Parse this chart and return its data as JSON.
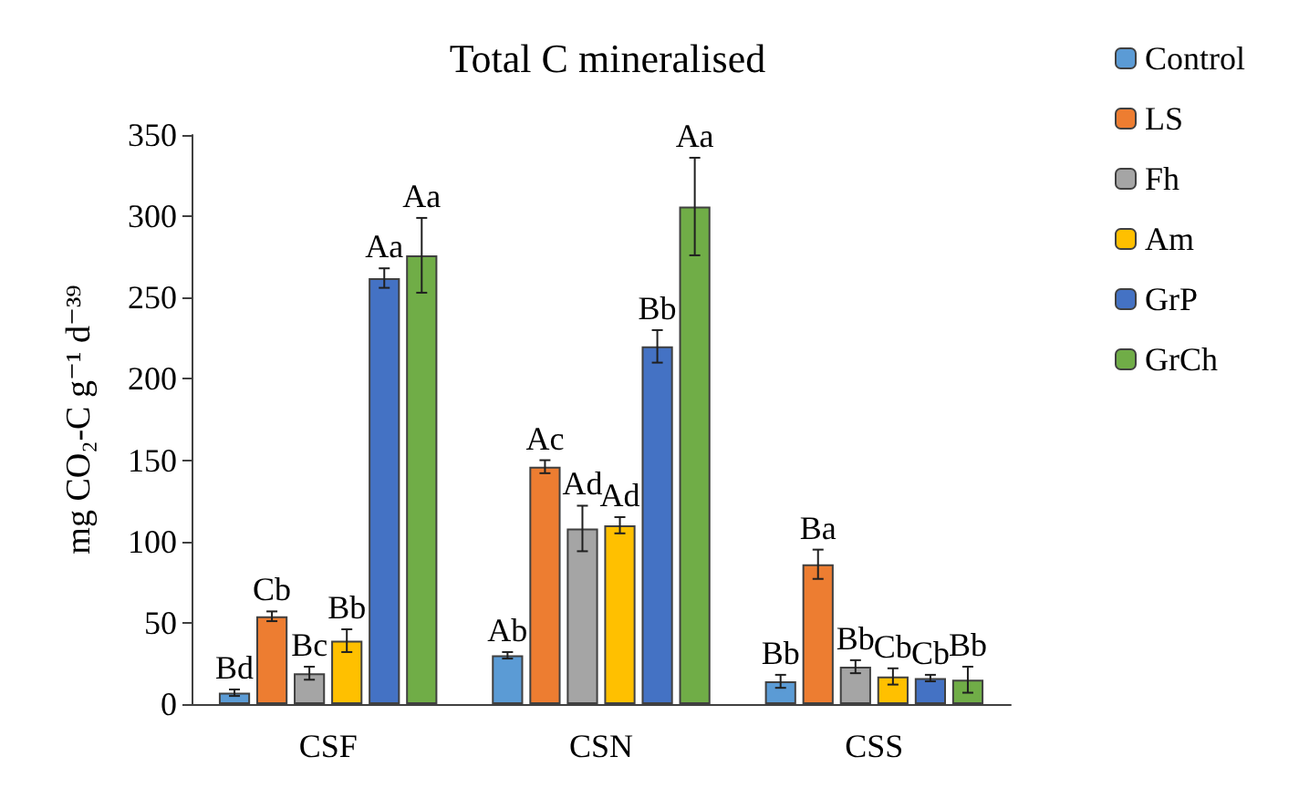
{
  "chart_data": {
    "type": "bar",
    "title": "Total C mineralised",
    "ylabel": "mg CO₂-C g⁻¹ d⁻³⁹",
    "categories": [
      "CSF",
      "CSN",
      "CSS"
    ],
    "series": [
      {
        "name": "Control",
        "color": "#5b9bd5",
        "values": [
          7,
          30,
          14
        ],
        "errors": [
          2,
          2,
          4
        ],
        "value_labels": [
          "Bd",
          "Ab",
          "Bb"
        ]
      },
      {
        "name": "LS",
        "color": "#ed7d31",
        "values": [
          54,
          146,
          86
        ],
        "errors": [
          3,
          4,
          9
        ],
        "value_labels": [
          "Cb",
          "Ac",
          "Ba"
        ]
      },
      {
        "name": "Fh",
        "color": "#a5a5a5",
        "values": [
          19,
          108,
          23
        ],
        "errors": [
          4,
          14,
          4
        ],
        "value_labels": [
          "Bc",
          "Ad",
          "Bb"
        ]
      },
      {
        "name": "Am",
        "color": "#ffc000",
        "values": [
          39,
          110,
          17
        ],
        "errors": [
          7,
          5,
          5
        ],
        "value_labels": [
          "Bb",
          "Ad",
          "Cb"
        ]
      },
      {
        "name": "GrP",
        "color": "#4472c4",
        "values": [
          262,
          220,
          16
        ],
        "errors": [
          6,
          10,
          2
        ],
        "value_labels": [
          "Aa",
          "Bb",
          "Cb"
        ]
      },
      {
        "name": "GrCh",
        "color": "#70ad47",
        "values": [
          276,
          306,
          15
        ],
        "errors": [
          23,
          30,
          8
        ],
        "value_labels": [
          "Aa",
          "Aa",
          "Bb"
        ]
      }
    ],
    "ylim": [
      0,
      350
    ],
    "yticks": [
      0,
      50,
      100,
      150,
      200,
      250,
      300,
      350
    ],
    "grid": false,
    "legend": "top right"
  }
}
